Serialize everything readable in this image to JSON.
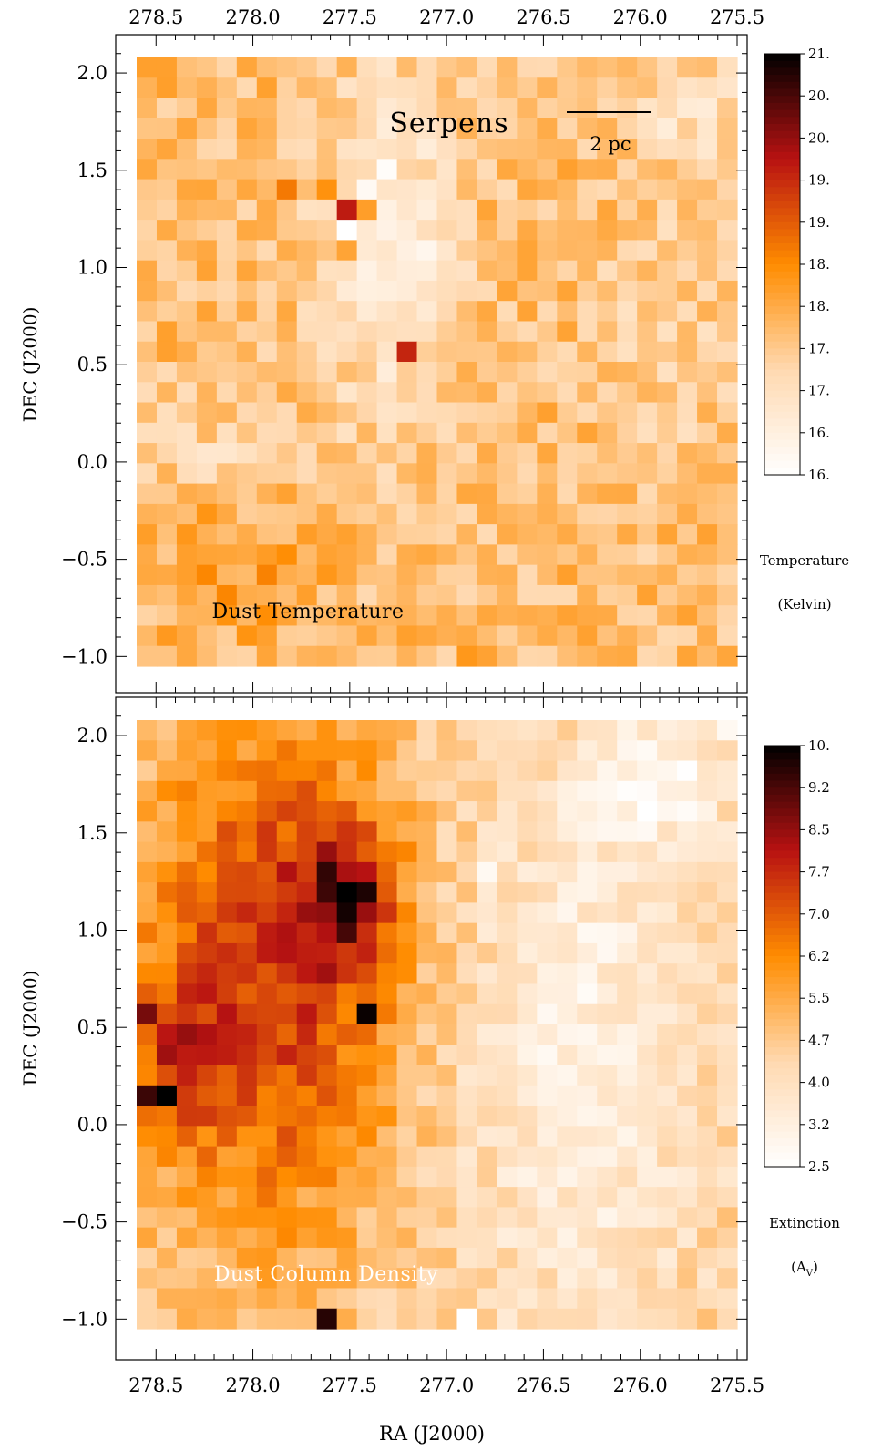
{
  "figure": {
    "title": "Serpens",
    "scale_bar_label": "2 pc",
    "xlabel": "RA (J2000)",
    "ylabel": "DEC (J2000)"
  },
  "chart_data": [
    {
      "type": "heatmap",
      "label": "Dust Temperature",
      "title": "Serpens",
      "xlabel": "RA (J2000)",
      "ylabel": "DEC (J2000)",
      "x_ticks": [
        "278.5",
        "278.0",
        "277.5",
        "277.0",
        "276.5",
        "276.0",
        "275.5"
      ],
      "x_tick_values": [
        278.5,
        278.0,
        277.5,
        277.0,
        276.5,
        276.0,
        275.5
      ],
      "y_ticks": [
        "2.0",
        "1.5",
        "1.0",
        "0.5",
        "0.0",
        "−0.5",
        "−1.0"
      ],
      "y_tick_values": [
        2.0,
        1.5,
        1.0,
        0.5,
        0.0,
        -0.5,
        -1.0
      ],
      "xlim": [
        278.6,
        275.5
      ],
      "ylim": [
        -1.05,
        2.08
      ],
      "grid": false,
      "colorbar": {
        "label_line1": "Temperature",
        "label_line2": "(Kelvin)",
        "ticks": [
          "21.",
          "20.",
          "20.",
          "19.",
          "19.",
          "18.",
          "18.",
          "17.",
          "17.",
          "16.",
          "16."
        ],
        "range": [
          16,
          21
        ],
        "colors": [
          "#ffffff",
          "#ffd9b0",
          "#ff8c00",
          "#b81212",
          "#000000"
        ]
      },
      "map_range": [
        15.8,
        21
      ],
      "cells": [
        {
          "ra": 277.55,
          "dec": 1.25,
          "value": 19.6
        },
        {
          "ra": 277.45,
          "dec": 1.25,
          "value": 18.1
        },
        {
          "ra": 277.5,
          "dec": 1.15,
          "value": 15.8
        },
        {
          "ra": 277.55,
          "dec": 1.05,
          "value": 18.0
        },
        {
          "ra": 277.25,
          "dec": 0.55,
          "value": 19.5
        },
        {
          "ra": 277.85,
          "dec": 1.45,
          "value": 18.6
        },
        {
          "ra": 277.65,
          "dec": 1.4,
          "value": 18.3
        },
        {
          "ra": 276.75,
          "dec": 1.25,
          "value": 18.0
        },
        {
          "ra": 276.85,
          "dec": -1.0,
          "value": 18.2
        },
        {
          "ra": 277.4,
          "dec": 1.45,
          "value": 16.0
        },
        {
          "ra": 277.35,
          "dec": 1.5,
          "value": 15.9
        },
        {
          "ra": 277.1,
          "dec": 1.1,
          "value": 16.1
        },
        {
          "ra": 278.25,
          "dec": 0.2,
          "value": 17.7
        },
        {
          "ra": 277.85,
          "dec": 1.55,
          "value": 17.4
        }
      ]
    },
    {
      "type": "heatmap",
      "label": "Dust Column Density",
      "xlabel": "RA (J2000)",
      "ylabel": "DEC (J2000)",
      "x_ticks": [
        "278.5",
        "278.0",
        "277.5",
        "277.0",
        "276.5",
        "276.0",
        "275.5"
      ],
      "x_tick_values": [
        278.5,
        278.0,
        277.5,
        277.0,
        276.5,
        276.0,
        275.5
      ],
      "y_ticks": [
        "2.0",
        "1.5",
        "1.0",
        "0.5",
        "0.0",
        "−0.5",
        "−1.0"
      ],
      "y_tick_values": [
        2.0,
        1.5,
        1.0,
        0.5,
        0.0,
        -0.5,
        -1.0
      ],
      "xlim": [
        278.6,
        275.5
      ],
      "ylim": [
        -1.05,
        2.08
      ],
      "grid": false,
      "colorbar": {
        "label_line1": "Extinction",
        "label_line2": "(A",
        "label_sub": "V",
        "label_close": ")",
        "ticks": [
          "10.",
          "9.2",
          "8.5",
          "7.7",
          "7.0",
          "6.2",
          "5.5",
          "4.7",
          "4.0",
          "3.2",
          "2.5"
        ],
        "range": [
          2.5,
          10
        ],
        "colors": [
          "#ffffff",
          "#ffd9b0",
          "#ff8c00",
          "#b81212",
          "#000000"
        ]
      },
      "map_range": [
        2.5,
        10
      ],
      "cells": [
        {
          "ra": 277.5,
          "dec": 1.2,
          "value": 10.0
        },
        {
          "ra": 277.55,
          "dec": 1.1,
          "value": 9.8
        },
        {
          "ra": 277.6,
          "dec": 1.25,
          "value": 9.5
        },
        {
          "ra": 277.45,
          "dec": 1.15,
          "value": 9.7
        },
        {
          "ra": 277.5,
          "dec": 1.0,
          "value": 9.3
        },
        {
          "ra": 277.45,
          "dec": 0.6,
          "value": 9.8
        },
        {
          "ra": 277.4,
          "dec": 0.55,
          "value": 9.9
        },
        {
          "ra": 278.45,
          "dec": 0.1,
          "value": 10.0
        },
        {
          "ra": 278.5,
          "dec": 0.2,
          "value": 9.4
        },
        {
          "ra": 278.5,
          "dec": 0.6,
          "value": 8.8
        },
        {
          "ra": 277.6,
          "dec": -1.0,
          "value": 9.6
        },
        {
          "ra": 276.85,
          "dec": -1.0,
          "value": 2.5
        },
        {
          "ra": 276.75,
          "dec": 1.25,
          "value": 2.8
        },
        {
          "ra": 276.25,
          "dec": 0.0,
          "value": 3.0
        },
        {
          "ra": 275.6,
          "dec": 2.0,
          "value": 2.8
        }
      ]
    }
  ]
}
